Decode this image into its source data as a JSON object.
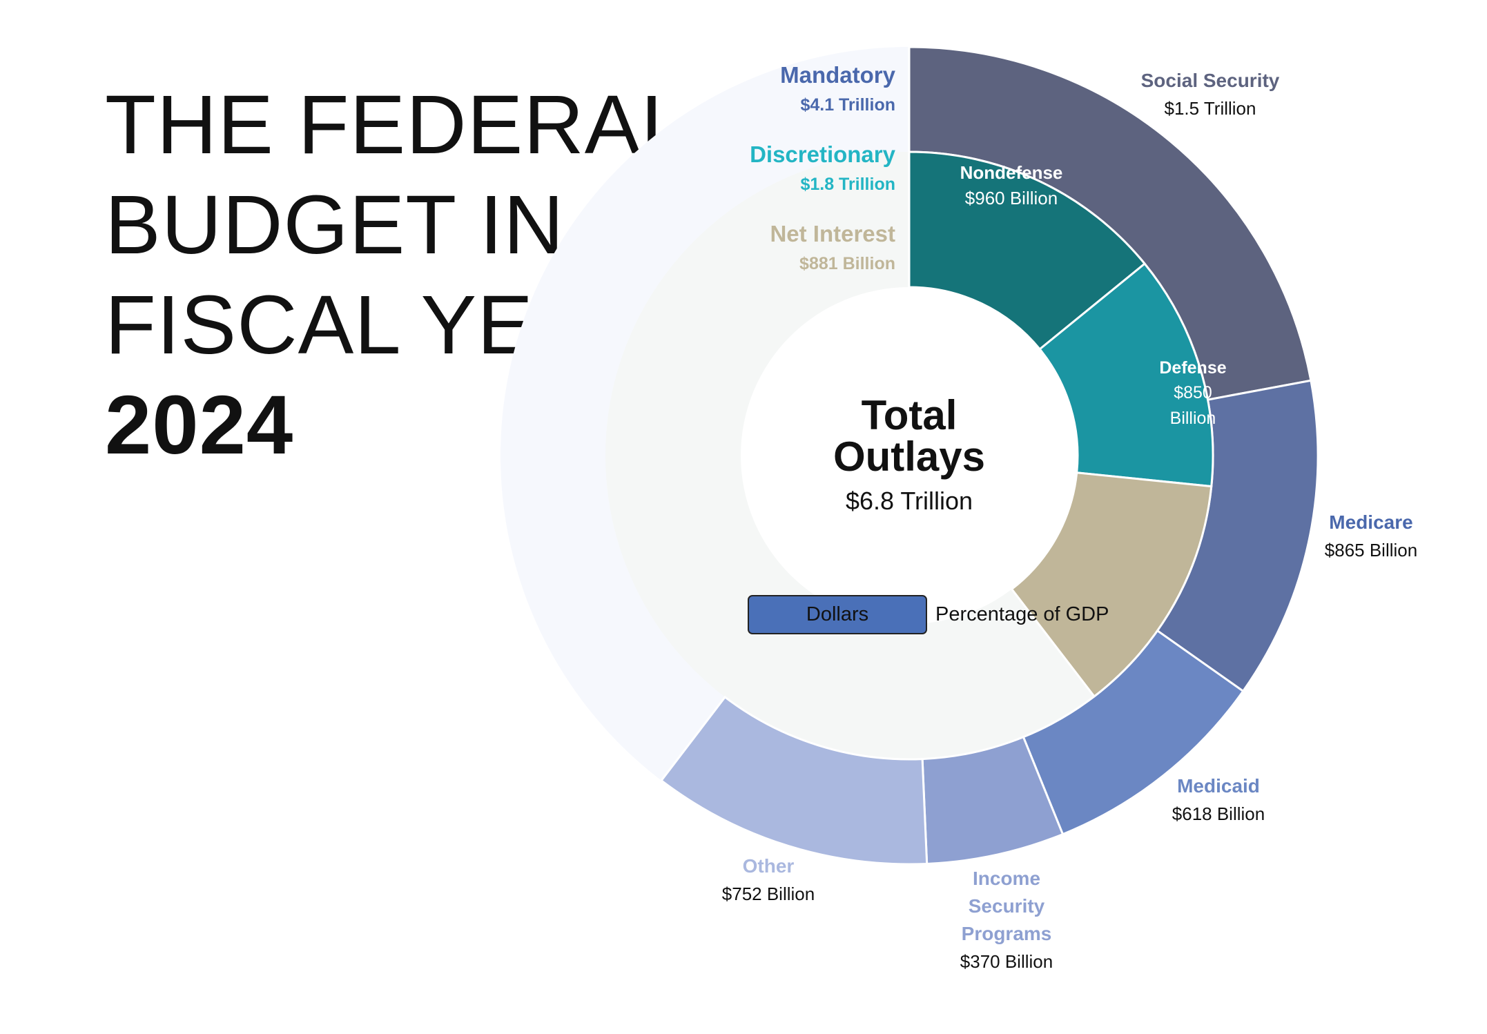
{
  "title": {
    "lines": [
      "THE FEDERAL",
      "BUDGET IN",
      "FISCAL YEAR"
    ],
    "year": "2024"
  },
  "center": {
    "label_line1": "Total",
    "label_line2": "Outlays",
    "value": "$6.8 Trillion"
  },
  "toggle": {
    "active": "Dollars",
    "inactive": "Percentage of GDP"
  },
  "colors": {
    "background_ring": "#f6f8fd",
    "inner_background": "#f5f7f6",
    "mandatory": "#4a68ac",
    "discretionary": "#23b5c4",
    "net_interest": "#c0b699"
  },
  "chart_data": {
    "type": "pie",
    "title": "THE FEDERAL BUDGET IN FISCAL YEAR 2024",
    "total": {
      "label": "Total Outlays",
      "value_text": "$6.8 Trillion",
      "value_billions": 6800
    },
    "groups": [
      {
        "name": "Mandatory",
        "value_text": "$4.1 Trillion",
        "value_billions": 4100,
        "color": "#4a68ac"
      },
      {
        "name": "Discretionary",
        "value_text": "$1.8 Trillion",
        "value_billions": 1800,
        "color": "#23b5c4"
      },
      {
        "name": "Net Interest",
        "value_text": "$881 Billion",
        "value_billions": 881,
        "color": "#c0b699"
      }
    ],
    "outer_ring": [
      {
        "name": "Social Security",
        "value_text": "$1.5 Trillion",
        "value_billions": 1500,
        "color": "#5d637f",
        "label_color": "#5d637f"
      },
      {
        "name": "Medicare",
        "value_text": "$865 Billion",
        "value_billions": 865,
        "color": "#5e71a3",
        "label_color": "#4a68ac"
      },
      {
        "name": "Medicaid",
        "value_text": "$618 Billion",
        "value_billions": 618,
        "color": "#6b87c3",
        "label_color": "#6b87c3"
      },
      {
        "name": "Income Security Programs",
        "value_text": "$370 Billion",
        "value_billions": 370,
        "color": "#8ea0d1",
        "label_color": "#8ea0d1"
      },
      {
        "name": "Other",
        "value_text": "$752 Billion",
        "value_billions": 752,
        "color": "#aab8df",
        "label_color": "#aab8df"
      }
    ],
    "inner_ring": [
      {
        "name": "Nondefense",
        "value_text": "$960 Billion",
        "value_billions": 960,
        "color": "#157479",
        "label_color": "#ffffff"
      },
      {
        "name": "Defense",
        "value_text": "$850 Billion",
        "value_billions": 850,
        "color": "#1b95a2",
        "label_color": "#ffffff"
      },
      {
        "name": "Net Interest",
        "value_text": "$881 Billion",
        "value_billions": 881,
        "color": "#c0b699"
      }
    ]
  }
}
